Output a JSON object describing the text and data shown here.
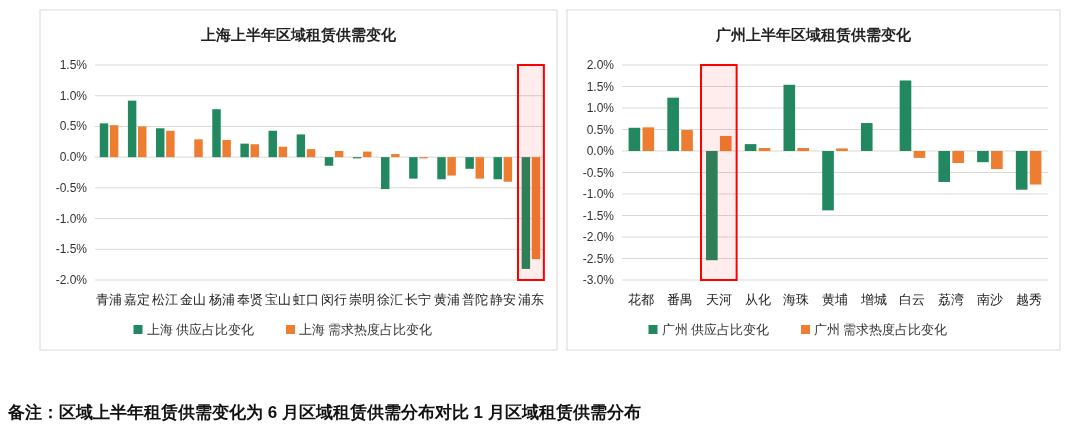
{
  "chart_data": [
    {
      "type": "bar",
      "title": "上海上半年区域租赁供需变化",
      "categories": [
        "青浦",
        "嘉定",
        "松江",
        "金山",
        "杨浦",
        "奉贤",
        "宝山",
        "虹口",
        "闵行",
        "崇明",
        "徐汇",
        "长宁",
        "黄浦",
        "普陀",
        "静安",
        "浦东"
      ],
      "series": [
        {
          "name": "上海 供应占比变化",
          "color": "#21885f",
          "values": [
            0.55,
            0.92,
            0.47,
            0,
            0.78,
            0.22,
            0.43,
            0.37,
            -0.14,
            -0.02,
            -0.52,
            -0.35,
            -0.36,
            -0.19,
            -0.36,
            -1.82
          ]
        },
        {
          "name": "上海 需求热度占比变化",
          "color": "#ed7d31",
          "values": [
            0.52,
            0.5,
            0.43,
            0.29,
            0.28,
            0.21,
            0.17,
            0.13,
            0.1,
            0.09,
            0.05,
            -0.02,
            -0.3,
            -0.35,
            -0.4,
            -1.66
          ]
        }
      ],
      "ylim": [
        -2.0,
        1.5
      ],
      "yticks": [
        {
          "value": -2.0,
          "label": "-2.0%"
        },
        {
          "value": -1.5,
          "label": "-1.5%"
        },
        {
          "value": -1.0,
          "label": "-1.0%"
        },
        {
          "value": -0.5,
          "label": "-0.5%"
        },
        {
          "value": 0,
          "label": "0.0%"
        },
        {
          "value": 0.5,
          "label": "0.5%"
        },
        {
          "value": 1.0,
          "label": "1.0%"
        },
        {
          "value": 1.5,
          "label": "1.5%"
        }
      ],
      "grid": "y",
      "legend": "bottom",
      "bands": [
        {
          "axis": "x",
          "from": "浦东",
          "to": "浦东",
          "label": null,
          "color": "#ff0000"
        }
      ],
      "annotations": [
        "备注：区域上半年租赁供需变化为 6 月区域租赁供需分布对比 1 月区域租赁供需分布"
      ]
    },
    {
      "type": "bar",
      "title": "广州上半年区域租赁供需变化",
      "categories": [
        "花都",
        "番禺",
        "天河",
        "从化",
        "海珠",
        "黄埔",
        "增城",
        "白云",
        "荔湾",
        "南沙",
        "越秀"
      ],
      "series": [
        {
          "name": "广州 供应占比变化",
          "color": "#21885f",
          "values": [
            0.54,
            1.24,
            -2.54,
            0.16,
            1.54,
            -1.38,
            0.65,
            1.64,
            -0.72,
            -0.26,
            -0.9
          ]
        },
        {
          "name": "广州 需求热度占比变化",
          "color": "#ed7d31",
          "values": [
            0.55,
            0.49,
            0.35,
            0.07,
            0.07,
            0.06,
            0,
            -0.16,
            -0.28,
            -0.42,
            -0.78
          ]
        }
      ],
      "ylim": [
        -3.0,
        2.0
      ],
      "yticks": [
        {
          "value": -3.0,
          "label": "-3.0%"
        },
        {
          "value": -2.5,
          "label": "-2.5%"
        },
        {
          "value": -2.0,
          "label": "-2.0%"
        },
        {
          "value": -1.5,
          "label": "-1.5%"
        },
        {
          "value": -1.0,
          "label": "-1.0%"
        },
        {
          "value": -0.5,
          "label": "-0.5%"
        },
        {
          "value": 0,
          "label": "0.0%"
        },
        {
          "value": 0.5,
          "label": "0.5%"
        },
        {
          "value": 1.0,
          "label": "1.0%"
        },
        {
          "value": 1.5,
          "label": "1.5%"
        },
        {
          "value": 2.0,
          "label": "2.0%"
        }
      ],
      "grid": "y",
      "legend": "bottom",
      "bands": [
        {
          "axis": "x",
          "from": "天河",
          "to": "天河",
          "label": null,
          "color": "#ff0000"
        }
      ]
    }
  ]
}
